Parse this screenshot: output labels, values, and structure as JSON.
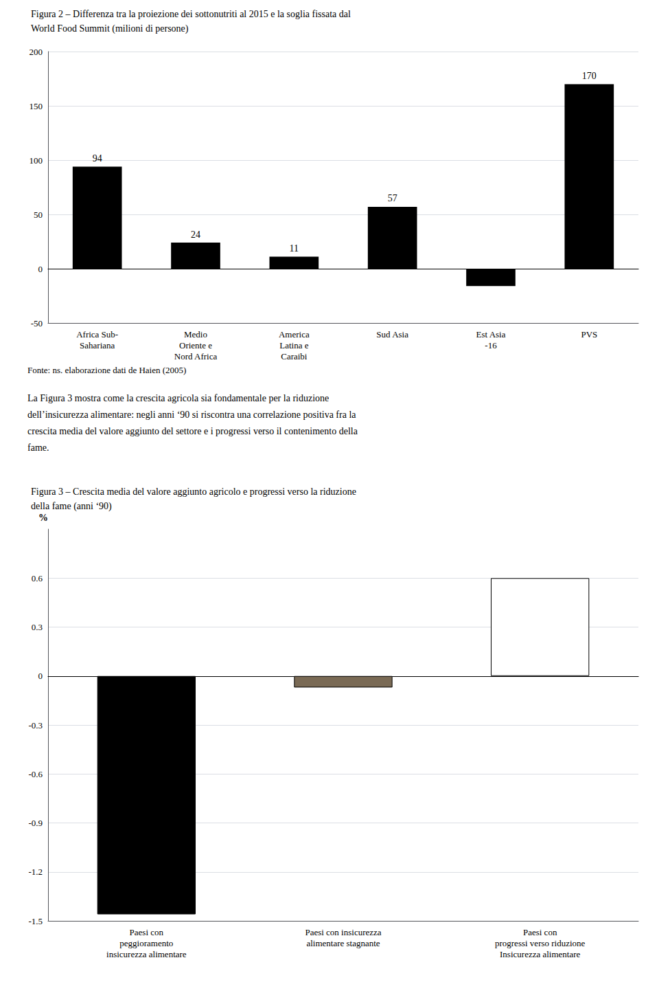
{
  "chart_data": [
    {
      "type": "bar",
      "title": "Figura 2 – Differenza tra la proiezione dei sottonutriti al 2015 e la soglia fissata dal\nWorld Food Summit (milioni di persone)",
      "categories": [
        "Africa Sub-\nSahariana",
        "Medio\nOriente e\nNord Africa",
        "America\nLatina e\nCaraibi",
        "Sud Asia",
        "Est Asia\n-16",
        "PVS"
      ],
      "values": [
        94,
        24,
        11,
        57,
        -16,
        170
      ],
      "value_labels": [
        "94",
        "24",
        "11",
        "57",
        null,
        "170"
      ],
      "data_labels": true,
      "color": "#000000",
      "ylim": [
        -50,
        200
      ],
      "yticks": [
        -50,
        0,
        50,
        100,
        150,
        200
      ],
      "grid": true,
      "annotations": [
        "Fonte: ns. elaborazione dati de Haien (2005)",
        "La Figura 3 mostra come la crescita agricola sia fondamentale per la riduzione",
        "dell’insicurezza alimentare: negli anni ‘90 si riscontra una correlazione positiva fra la",
        "crescita media del valore aggiunto del settore e i progressi verso il contenimento della",
        "fame."
      ]
    },
    {
      "type": "bar",
      "title": "Figura 3 – Crescita media del valore aggiunto agricolo e progressi verso la riduzione\ndella fame (anni ‘90)",
      "ylabel": "%",
      "categories": [
        "Paesi con\npeggioramento\ninsicurezza alimentare",
        "Paesi con insicurezza\nalimentare stagnante",
        "Paesi con\nprogressi verso riduzione\nInsicurezza alimentare"
      ],
      "values": [
        -1.46,
        -0.07,
        0.6
      ],
      "colors": [
        "#000000",
        "#7a6a55",
        "#ffffff"
      ],
      "ylim": [
        -1.5,
        0.9
      ],
      "yticks": [
        -1.5,
        -1.2,
        -0.9,
        -0.6,
        -0.3,
        0,
        0.3,
        0.6
      ],
      "grid": true
    }
  ]
}
